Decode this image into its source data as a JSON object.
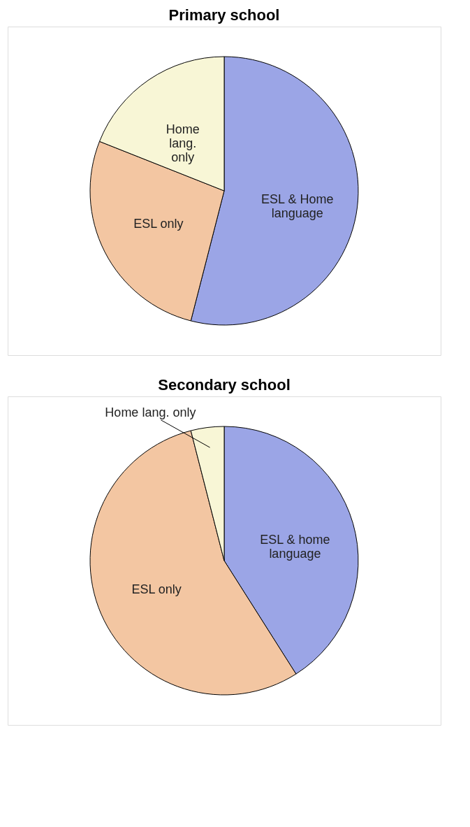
{
  "chart_data": [
    {
      "type": "pie",
      "title": "Primary school",
      "categories": [
        "ESL & Home\nlanguage",
        "ESL only",
        "Home\nlang.\nonly"
      ],
      "values": [
        54,
        27,
        19
      ],
      "colors": [
        "#9ba5e6",
        "#f3c6a2",
        "#f8f6d6"
      ],
      "legend": false
    },
    {
      "type": "pie",
      "title": "Secondary school",
      "categories": [
        "ESL & home\nlanguage",
        "ESL only",
        "Home lang. only"
      ],
      "values": [
        41,
        55,
        4
      ],
      "colors": [
        "#9ba5e6",
        "#f3c6a2",
        "#f8f6d6"
      ],
      "legend": false
    }
  ]
}
